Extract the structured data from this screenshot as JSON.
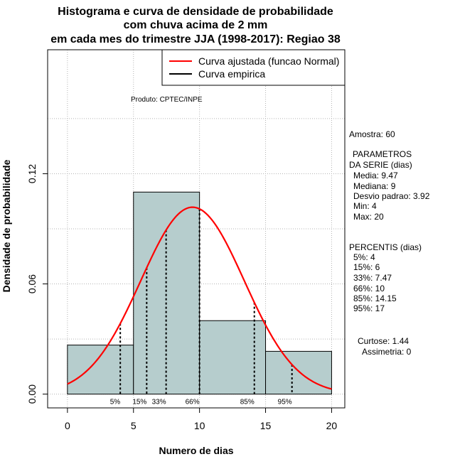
{
  "chart_data": {
    "type": "histogram",
    "title_lines": [
      "Histograma e curva de densidade de probabilidade",
      "com chuva acima de 2 mm",
      "em cada mes do trimestre JJA (1998-2017): Regiao 38"
    ],
    "xlabel": "Numero de dias",
    "ylabel": "Densidade de probabilidade",
    "xlim": [
      -1.5,
      21
    ],
    "ylim": [
      -0.0075,
      0.1875
    ],
    "x_ticks": [
      0,
      5,
      10,
      15,
      20
    ],
    "y_ticks": [
      0.0,
      0.06,
      0.12
    ],
    "y_tick_labels": [
      "0.00",
      "0.06",
      "0.12"
    ],
    "grid": true,
    "legend_position": "top-right",
    "credit": "Produto: CPTEC/INPE",
    "bins": [
      {
        "start": 0,
        "end": 5,
        "density": 0.0267
      },
      {
        "start": 5,
        "end": 10,
        "density": 0.11
      },
      {
        "start": 10,
        "end": 15,
        "density": 0.04
      },
      {
        "start": 15,
        "end": 20,
        "density": 0.0233
      }
    ],
    "series": [
      {
        "name": "Curva ajustada (funcao Normal)",
        "color": "#ff0000",
        "distribution": "normal",
        "mean": 9.47,
        "sd": 3.92
      },
      {
        "name": "Curva empirica",
        "color": "#000000"
      }
    ],
    "percentile_markers": [
      {
        "label": "5%",
        "x": 4
      },
      {
        "label": "15%",
        "x": 6
      },
      {
        "label": "33%",
        "x": 7.47
      },
      {
        "label": "66%",
        "x": 10
      },
      {
        "label": "85%",
        "x": 14.15
      },
      {
        "label": "95%",
        "x": 17
      }
    ],
    "colors": {
      "bar_fill": "#b6cdcd",
      "grid": "#b3b3b3"
    }
  },
  "side_panel": {
    "sample": "Amostra: 60",
    "params_title_1": "PARAMETROS",
    "params_title_2": "DA SERIE (dias)",
    "media": "Media: 9.47",
    "mediana": "Mediana: 9",
    "desvio": "Desvio padrao: 3.92",
    "min": "Min: 4",
    "max": "Max: 20",
    "percentis_title": "PERCENTIS (dias)",
    "p5": "5%: 4",
    "p15": "15%: 6",
    "p33": "33%: 7.47",
    "p66": "66%: 10",
    "p85": "85%: 14.15",
    "p95": "95%: 17",
    "curtose": "Curtose: 1.44",
    "assimetria": "Assimetria: 0"
  }
}
